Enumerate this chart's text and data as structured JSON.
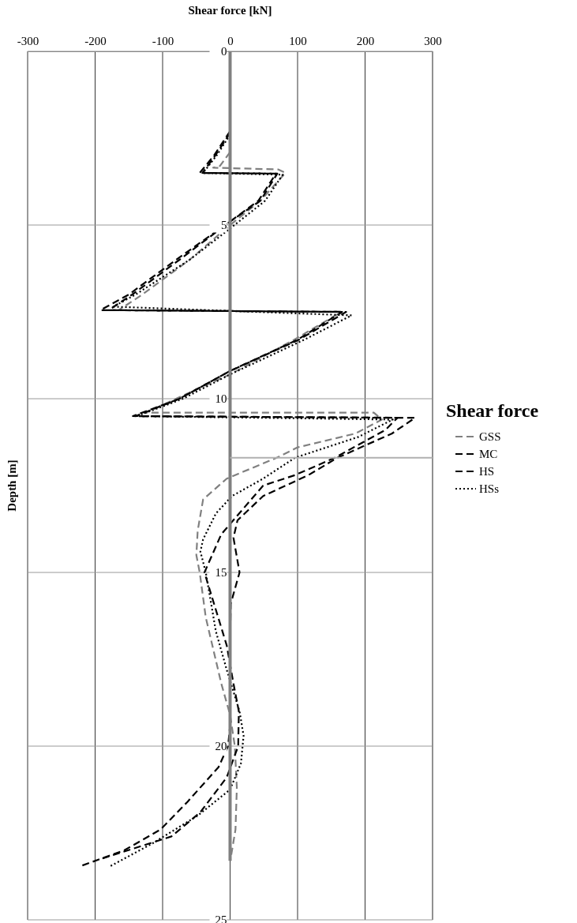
{
  "chart_data": {
    "type": "line",
    "orientation": "horizontal",
    "xlabel": "Shear force [kN]",
    "ylabel": "Depth [m]",
    "legend_title": "Shear force",
    "legend": "right",
    "grid": true,
    "xlim": [
      -300,
      300
    ],
    "xticks": [
      -300,
      -200,
      -100,
      0,
      100,
      200,
      300
    ],
    "ylim": [
      25,
      0
    ],
    "yticks": [
      0,
      5,
      10,
      15,
      20,
      25
    ],
    "series": [
      {
        "name": "GSS",
        "color": "#808080",
        "line_style": "dashed",
        "x": [
          2.9,
          3.3,
          3.35,
          3.4,
          3.5,
          4.3,
          5.0,
          6.0,
          7.0,
          7.45,
          7.5,
          8.3,
          9.3,
          10.0,
          10.4,
          10.4,
          10.6,
          11.0,
          11.4,
          11.7,
          12.3,
          12.9,
          13.8,
          14.5,
          15.0,
          16.3,
          18.2,
          19.1,
          20.0,
          21.2,
          22.4,
          23.1,
          23.3
        ],
        "values": [
          0,
          -15,
          -25,
          71,
          82,
          45,
          0,
          -60,
          -130,
          -165,
          165,
          95,
          0,
          -80,
          -125,
          213,
          225,
          186,
          100,
          69,
          -5,
          -40,
          -48,
          -50,
          -45,
          -36,
          -13,
          0,
          7,
          10,
          8,
          2,
          0
        ]
      },
      {
        "name": "MC",
        "color": "#000000",
        "line_style": "dashed",
        "x": [
          2.35,
          3.0,
          3.5,
          3.52,
          4.3,
          4.9,
          6.0,
          7.0,
          7.45,
          7.5,
          8.3,
          9.2,
          10.0,
          10.5,
          10.55,
          10.9,
          11.7,
          12.2,
          12.5,
          13.9,
          15.0,
          15.7,
          17.1,
          18.2,
          19.0,
          20.0,
          20.9,
          21.9,
          22.6,
          23.25
        ],
        "values": [
          0,
          -22,
          -41,
          70,
          45,
          0,
          -75,
          -145,
          -180,
          166,
          100,
          0,
          -75,
          -144,
          248,
          230,
          155,
          96,
          49,
          -13,
          -38,
          -27,
          -5,
          5,
          13,
          12,
          -5,
          -44,
          -87,
          -192
        ]
      },
      {
        "name": "HS",
        "color": "#000000",
        "line_style": "dashed",
        "x": [
          2.3,
          3.0,
          3.5,
          3.52,
          4.3,
          4.9,
          6.0,
          7.0,
          7.45,
          7.5,
          8.3,
          9.2,
          10.0,
          10.5,
          10.55,
          11.0,
          11.7,
          12.2,
          12.8,
          13.5,
          14.0,
          15.0,
          15.9,
          17.0,
          18.5,
          19.4,
          20.0,
          20.6,
          21.6,
          22.4,
          23.0,
          23.45
        ],
        "values": [
          0,
          -24,
          -45,
          68,
          42,
          0,
          -80,
          -150,
          -192,
          172,
          102,
          0,
          -75,
          -140,
          274,
          240,
          159,
          116,
          49,
          11,
          5,
          14,
          1,
          0,
          0,
          0,
          -3,
          -17,
          -63,
          -103,
          -157,
          -221
        ]
      },
      {
        "name": "HSs",
        "color": "#000000",
        "line_style": "dotted",
        "x": [
          2.4,
          3.0,
          3.5,
          3.55,
          4.3,
          5.1,
          6.0,
          7.0,
          7.35,
          7.6,
          8.3,
          9.3,
          10.0,
          10.5,
          10.6,
          11.1,
          11.7,
          12.3,
          12.8,
          13.3,
          14.05,
          14.4,
          15.0,
          16.7,
          17.8,
          19.0,
          19.7,
          20.5,
          21.25,
          22.0,
          22.8,
          23.45
        ],
        "values": [
          0,
          -20,
          -40,
          78,
          52,
          0,
          -60,
          -140,
          -173,
          180,
          110,
          0,
          -70,
          -138,
          241,
          190,
          96,
          49,
          3,
          -21,
          -40,
          -44,
          -36,
          -21,
          -5,
          14,
          20,
          16,
          0,
          -48,
          -115,
          -177
        ]
      },
      {
        "color": "#808080",
        "line_style": "solid",
        "x": [
          0,
          23.3
        ],
        "values": [
          0,
          0
        ]
      },
      {
        "color": "#b0b0b0",
        "line_style": "solid",
        "x": [
          11.7,
          11.7
        ],
        "values": [
          0,
          300
        ]
      }
    ]
  }
}
